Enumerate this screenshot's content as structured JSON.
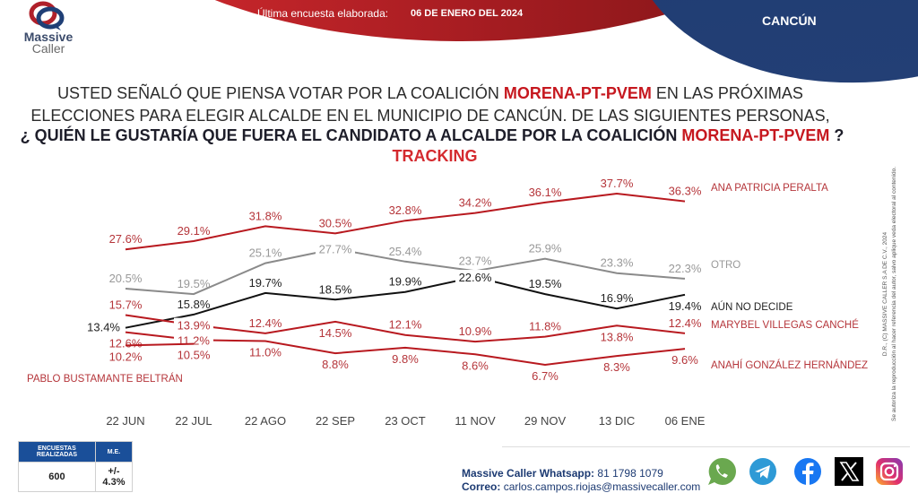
{
  "header": {
    "logo_line1": "Massive",
    "logo_line2": "Caller",
    "last_survey_label": "Última encuesta elaborada:",
    "last_survey_date": "06 DE ENERO DEL 2024",
    "city": "CANCÚN"
  },
  "question": {
    "line1_pre": "USTED SEÑALÓ QUE PIENSA VOTAR POR LA COALICIÓN ",
    "line1_party": "MORENA-PT-PVEM",
    "line1_post": " EN LAS PRÓXIMAS",
    "line2": "ELECCIONES PARA ELEGIR ALCALDE EN EL MUNICIPIO DE CANCÚN. DE LAS SIGUIENTES PERSONAS,",
    "line3_pre": "¿ QUIÉN LE GUSTARÍA QUE FUERA EL CANDIDATO A ALCALDE POR LA COALICIÓN ",
    "line3_party": "MORENA-PT-PVEM",
    "line3_post": " ?",
    "line4": "TRACKING"
  },
  "copyright": {
    "line1": "D.R., (C) MASSIVE CALLER S.A DE C.V., 2024",
    "line2": "Se autoriza la reproducción al hacer referencia del autor, salvo aplique veda electoral al contenido."
  },
  "chart_data": {
    "type": "line",
    "title": "TRACKING",
    "xlabel": "",
    "ylabel": "",
    "ylim": [
      6.7,
      37.7
    ],
    "grid": false,
    "legend": "right (labels at line ends)",
    "categories": [
      "22 JUN",
      "22 JUL",
      "22 AGO",
      "22 SEP",
      "23 OCT",
      "11 NOV",
      "29 NOV",
      "13 DIC",
      "06 ENE"
    ],
    "series": [
      {
        "name": "ANA PATRICIA PERALTA",
        "color": "#b8191f",
        "label_color": "#b5353a",
        "values": [
          27.6,
          29.1,
          31.8,
          30.5,
          32.8,
          34.2,
          36.1,
          37.7,
          36.3
        ],
        "label_pos": [
          "above",
          "above",
          "above",
          "above",
          "above",
          "above",
          "above",
          "above",
          "above"
        ]
      },
      {
        "name": "OTRO",
        "color": "#8a8a8a",
        "label_color": "#999999",
        "values": [
          20.5,
          19.5,
          25.1,
          27.7,
          25.4,
          23.7,
          25.9,
          23.3,
          22.3
        ],
        "label_pos": [
          "above",
          "above",
          "above",
          "inline",
          "above",
          "above",
          "above",
          "above",
          "above"
        ]
      },
      {
        "name": "AÚN NO DECIDE",
        "color": "#111111",
        "label_color": "#222222",
        "values": [
          13.4,
          15.8,
          19.7,
          18.5,
          19.9,
          22.6,
          19.5,
          16.9,
          19.4
        ],
        "label_pos": [
          "left",
          "above",
          "above",
          "above",
          "above",
          "inline",
          "above",
          "above",
          "below"
        ]
      },
      {
        "name": "MARYBEL VILLEGAS CANCHÉ",
        "color": "#b8191f",
        "label_color": "#b5353a",
        "values": [
          15.7,
          13.9,
          12.4,
          14.5,
          12.1,
          10.9,
          11.8,
          13.8,
          12.4
        ],
        "label_pos": [
          "above",
          "inline",
          "above",
          "below",
          "above",
          "above",
          "above",
          "below",
          "above"
        ]
      },
      {
        "name": "ANAHÍ GONZÁLEZ HERNÁNDEZ",
        "color": "#b8191f",
        "label_color": "#b5353a",
        "values": [
          12.6,
          11.2,
          11.0,
          8.8,
          9.8,
          8.6,
          6.7,
          8.3,
          9.6
        ],
        "label_pos": [
          "below",
          "inline",
          "below",
          "below",
          "below",
          "below",
          "below",
          "below",
          "below"
        ]
      },
      {
        "name": "PABLO BUSTAMANTE BELTRÁN",
        "color": "#b8191f",
        "label_color": "#b5353a",
        "values": [
          10.2,
          10.5,
          null,
          null,
          null,
          null,
          null,
          null,
          null
        ],
        "label_pos": [
          "below",
          "below"
        ]
      }
    ]
  },
  "stats_table": {
    "headers": [
      "ENCUESTAS REALIZADAS",
      "M.E."
    ],
    "values": [
      "600",
      "+/- 4.3%"
    ]
  },
  "contact": {
    "whatsapp_label": "Massive Caller Whatsapp:",
    "whatsapp_number": "81 1798 1079",
    "email_label": "Correo:",
    "email": "carlos.campos.riojas@massivecaller.com"
  },
  "social": [
    "whatsapp-icon",
    "telegram-icon",
    "facebook-icon",
    "x-icon",
    "instagram-icon"
  ],
  "colors": {
    "brand_red": "#c6181f",
    "brand_blue": "#1c3a72",
    "table_blue": "#1a4f99"
  }
}
